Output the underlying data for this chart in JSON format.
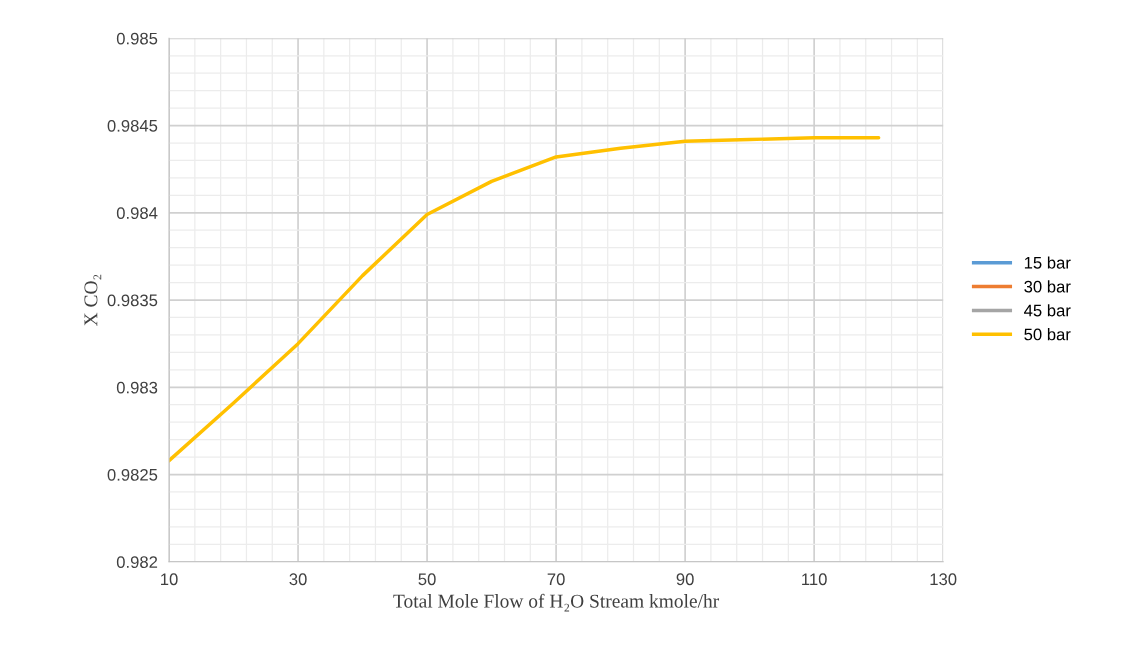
{
  "chart_data": {
    "type": "line",
    "xlabel": "Total Mole Flow of H₂O Stream kmole/hr",
    "ylabel": "X CO₂",
    "x": [
      10,
      20,
      30,
      40,
      50,
      60,
      70,
      80,
      90,
      100,
      110,
      120
    ],
    "series": [
      {
        "name": "15 bar",
        "color": "#5b9bd5",
        "values": [
          null,
          null,
          null,
          null,
          null,
          null,
          null,
          null,
          null,
          null,
          null,
          null
        ]
      },
      {
        "name": "30 bar",
        "color": "#ed7d31",
        "values": [
          null,
          null,
          null,
          null,
          null,
          null,
          null,
          null,
          null,
          null,
          null,
          null
        ]
      },
      {
        "name": "45 bar",
        "color": "#a5a5a5",
        "values": [
          null,
          null,
          null,
          null,
          null,
          null,
          null,
          null,
          null,
          null,
          null,
          null
        ]
      },
      {
        "name": "50 bar",
        "color": "#ffc000",
        "values": [
          0.98258,
          0.98291,
          0.98325,
          0.98364,
          0.98399,
          0.98418,
          0.98432,
          0.98437,
          0.98441,
          0.98442,
          0.98443,
          0.98443
        ]
      }
    ],
    "xlim": [
      10,
      130
    ],
    "xticks": [
      10,
      30,
      50,
      70,
      90,
      110,
      130
    ],
    "ylim": [
      0.982,
      0.985
    ],
    "yticks": [
      {
        "value": 0.982,
        "label": "0.982"
      },
      {
        "value": 0.9825,
        "label": "0.9825"
      },
      {
        "value": 0.983,
        "label": "0.983"
      },
      {
        "value": 0.9835,
        "label": "0.9835"
      },
      {
        "value": 0.984,
        "label": "0.984"
      },
      {
        "value": 0.9845,
        "label": "0.9845"
      },
      {
        "value": 0.985,
        "label": "0.985"
      }
    ],
    "grid": true,
    "legend": "right",
    "marker": "none",
    "line_style": "solid"
  }
}
